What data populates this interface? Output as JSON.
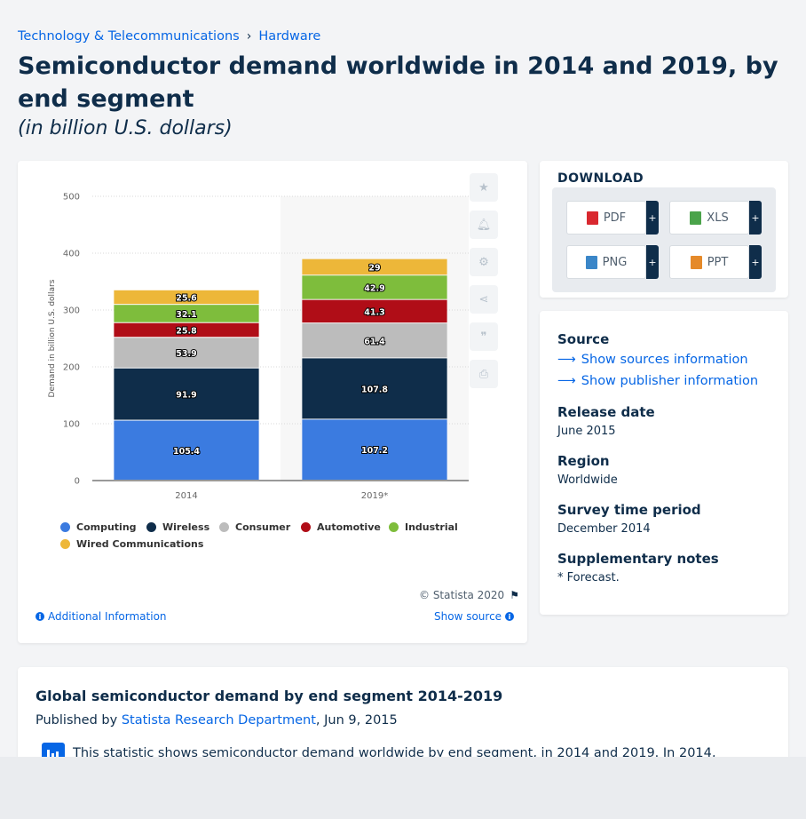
{
  "breadcrumb": {
    "first": "Technology & Telecommunications",
    "separator": "›",
    "second": "Hardware"
  },
  "page": {
    "title": "Semiconductor demand worldwide in 2014 and 2019, by end segment",
    "subtitle": "(in billion U.S. dollars)"
  },
  "colors": {
    "computing": "#3b7be0",
    "wireless": "#0f2d4a",
    "consumer": "#bcbcbc",
    "automotive": "#b00d17",
    "industrial": "#7ebd3c",
    "wired": "#edb739",
    "link": "#0666e5"
  },
  "chart_data": {
    "type": "bar",
    "stacked": true,
    "categories": [
      "2014",
      "2019*"
    ],
    "ylabel": "Demand in billion U.S. dollars",
    "ylim": [
      0,
      500
    ],
    "yticks": [
      0,
      100,
      200,
      300,
      400,
      500
    ],
    "grid": true,
    "highlighted_category": "2019*",
    "legend_position": "bottom",
    "series": [
      {
        "name": "Computing",
        "values": [
          105.4,
          107.2
        ],
        "color": "#3b7be0"
      },
      {
        "name": "Wireless",
        "values": [
          91.9,
          107.8
        ],
        "color": "#0f2d4a"
      },
      {
        "name": "Consumer",
        "values": [
          53.9,
          61.4
        ],
        "color": "#bcbcbc"
      },
      {
        "name": "Automotive",
        "values": [
          25.8,
          41.3
        ],
        "color": "#b00d17"
      },
      {
        "name": "Industrial",
        "values": [
          32.1,
          42.9
        ],
        "color": "#7ebd3c"
      },
      {
        "name": "Wired Communications",
        "values": [
          25.6,
          29
        ],
        "color": "#edb739"
      }
    ],
    "value_labels": [
      [
        "105.4",
        "107.2"
      ],
      [
        "91.9",
        "107.8"
      ],
      [
        "53.9",
        "61.4"
      ],
      [
        "25.8",
        "41.3"
      ],
      [
        "32.1",
        "42.9"
      ],
      [
        "25.6",
        "29"
      ]
    ]
  },
  "chart_footer": {
    "copyright": "© Statista 2020",
    "additional_info": "Additional Information",
    "show_source": "Show source"
  },
  "side_tools": [
    "star-icon",
    "bell-icon",
    "gear-icon",
    "share-icon",
    "quote-icon",
    "print-icon"
  ],
  "download": {
    "heading": "DOWNLOAD",
    "buttons": [
      {
        "label": "PDF",
        "icon": "pdf-file-icon",
        "color": "#d9282f"
      },
      {
        "label": "XLS",
        "icon": "xls-file-icon",
        "color": "#4aa34a"
      },
      {
        "label": "PNG",
        "icon": "png-file-icon",
        "color": "#3a86c8"
      },
      {
        "label": "PPT",
        "icon": "ppt-file-icon",
        "color": "#e58a2a"
      }
    ],
    "plus": "+"
  },
  "info": {
    "source_label": "Source",
    "show_sources": "Show sources information",
    "show_publisher": "Show publisher information",
    "release_label": "Release date",
    "release_value": "June 2015",
    "region_label": "Region",
    "region_value": "Worldwide",
    "survey_label": "Survey time period",
    "survey_value": "December 2014",
    "notes_label": "Supplementary notes",
    "notes_value": "* Forecast."
  },
  "article": {
    "title": "Global semiconductor demand by end segment 2014-2019",
    "published_prefix": "Published by",
    "publisher": "Statista Research Department",
    "date": ", Jun 9, 2015",
    "text": "This statistic shows semiconductor demand worldwide by end segment, in 2014 and 2019. In 2014,"
  }
}
